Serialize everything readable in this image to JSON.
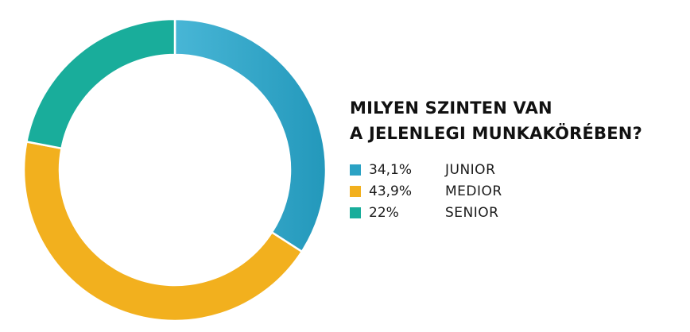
{
  "chart_data": {
    "type": "pie",
    "donut": true,
    "title_lines": [
      "MILYEN SZINTEN VAN",
      "A JELENLEGI MUNKAKÖRÉBEN?"
    ],
    "legend_position": "right",
    "slices": [
      {
        "label": "JUNIOR",
        "value": 34.1,
        "value_label": "34,1%",
        "color": "#2ba2c4"
      },
      {
        "label": "MEDIOR",
        "value": 43.9,
        "value_label": "43,9%",
        "color": "#f2b01e"
      },
      {
        "label": "SENIOR",
        "value": 22.0,
        "value_label": "22%",
        "color": "#19ad9b"
      }
    ]
  }
}
